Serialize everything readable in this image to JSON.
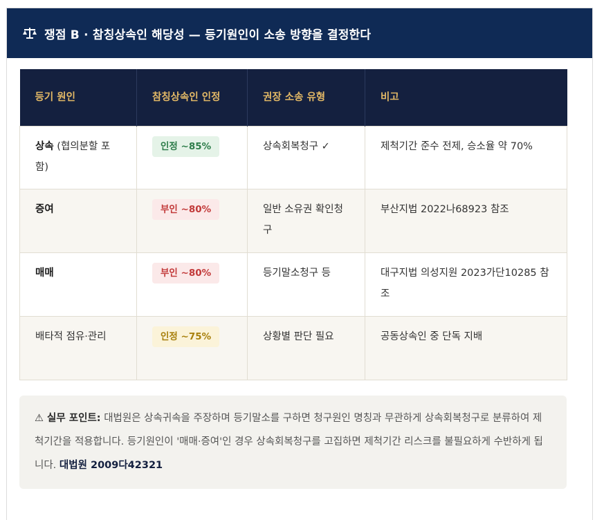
{
  "header": {
    "icon": "scales-icon",
    "title": "쟁점 B · 참칭상속인 해당성 — 등기원인이 소송 방향을 결정한다"
  },
  "table": {
    "columns": [
      "등기 원인",
      "참칭상속인 인정",
      "권장 소송 유형",
      "비고"
    ],
    "rows": [
      {
        "cause_strong": "상속",
        "cause_rest": " (협의분할 포함)",
        "badge": "인정 ~85%",
        "badge_color": "green",
        "suit": "상속회복청구 ✓",
        "note": "제척기간 준수 전제, 승소율 약 70%"
      },
      {
        "cause_strong": "증여",
        "cause_rest": "",
        "badge": "부인 ~80%",
        "badge_color": "red",
        "suit": "일반 소유권 확인청구",
        "note": "부산지법 2022나68923 참조"
      },
      {
        "cause_strong": "매매",
        "cause_rest": "",
        "badge": "부인 ~80%",
        "badge_color": "red",
        "suit": "등기말소청구 등",
        "note": "대구지법 의성지원 2023가단10285 참조"
      },
      {
        "cause_strong": "",
        "cause_rest": "배타적 점유·관리",
        "badge": "인정 ~75%",
        "badge_color": "yellow",
        "suit": "상황별 판단 필요",
        "note": "공동상속인 중 단독 지배"
      }
    ]
  },
  "note": {
    "label": "⚠ 실무 포인트:",
    "text": " 대법원은 상속귀속을 주장하며 등기말소를 구하면 청구원인 명칭과 무관하게 상속회복청구로 분류하여 제척기간을 적용합니다. 등기원인이 '매매·증여'인 경우 상속회복청구를 고집하면 제척기간 리스크를 불필요하게 수반하게 됩니다. ",
    "ref": "대법원 2009다42321"
  },
  "colors": {
    "header_bg": "#0f2a55",
    "table_head_bg": "#14203f",
    "table_head_text": "#e2b866"
  }
}
